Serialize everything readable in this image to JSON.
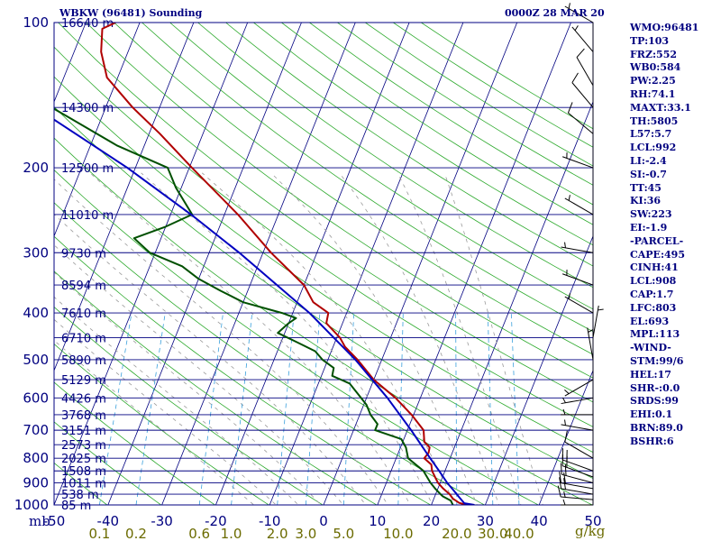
{
  "header": {
    "title": "WBKW (96481) Sounding",
    "datetime": "0000Z 28 MAR 20"
  },
  "indices": [
    "WMO:96481",
    "TP:103",
    "FRZ:552",
    "WB0:584",
    "PW:2.25",
    "RH:74.1",
    "MAXT:33.1",
    "TH:5805",
    "L57:5.7",
    "LCL:992",
    "LI:-2.4",
    "SI:-0.7",
    "TT:45",
    "KI:36",
    "SW:223",
    "EI:-1.9",
    "-PARCEL-",
    "CAPE:495",
    "CINH:41",
    "LCL:908",
    "CAP:1.7",
    "LFC:803",
    "EL:693",
    "MPL:113",
    "-WIND-",
    "STM:99/6",
    "HEL:17",
    "SHR-:0.0",
    "SRDS:99",
    "EHI:0.1",
    "BRN:89.0",
    "BSHR:6"
  ],
  "colors": {
    "frame": "#000080",
    "isobar": "#000080",
    "isotherm": "#000080",
    "dry_adiabat": "#2eaa2e",
    "moist_adiabat": "#9a9a9a",
    "mixing_ratio": "#3aa0dc",
    "temperature": "#b00000",
    "dewpoint": "#005000",
    "parcel": "#0000c0",
    "wind_barb": "#000000",
    "axis_text": "#000080",
    "mixing_text": "#6b6b00"
  },
  "chart_data": {
    "type": "line",
    "chart_kind": "skew-T log-P sounding",
    "y_scale": "log",
    "ylim": [
      1000,
      100
    ],
    "xlim": [
      -50,
      50
    ],
    "y_unit": "mb",
    "mixing_unit": "g/kg",
    "pressure_ticks": [
      100,
      200,
      300,
      400,
      500,
      600,
      700,
      800,
      900,
      1000
    ],
    "temperature_ticks": [
      -50,
      -40,
      -30,
      -20,
      -10,
      0,
      10,
      20,
      30,
      40,
      50
    ],
    "mixing_ratio_ticks": [
      "0.1",
      "0.2",
      "0.6",
      "1.0",
      "2.0",
      "3.0",
      "5.0",
      "10.0",
      "20.0",
      "30.0",
      "40.0"
    ],
    "mixing_ratio_values": [
      0.1,
      0.2,
      0.6,
      1.0,
      2.0,
      3.0,
      5.0,
      10.0,
      20.0,
      30.0,
      40.0
    ],
    "height_labels": [
      {
        "p": 100,
        "label": "16640 m"
      },
      {
        "p": 150,
        "label": "14300 m"
      },
      {
        "p": 200,
        "label": "12500 m"
      },
      {
        "p": 250,
        "label": "11010 m"
      },
      {
        "p": 300,
        "label": "9730 m"
      },
      {
        "p": 350,
        "label": "8594 m"
      },
      {
        "p": 400,
        "label": "7610 m"
      },
      {
        "p": 450,
        "label": "6710 m"
      },
      {
        "p": 500,
        "label": "5890 m"
      },
      {
        "p": 550,
        "label": "5129 m"
      },
      {
        "p": 600,
        "label": "4426 m"
      },
      {
        "p": 650,
        "label": "3768 m"
      },
      {
        "p": 700,
        "label": "3151 m"
      },
      {
        "p": 750,
        "label": "2573 m"
      },
      {
        "p": 800,
        "label": "2025 m"
      },
      {
        "p": 850,
        "label": "1508 m"
      },
      {
        "p": 900,
        "label": "1011 m"
      },
      {
        "p": 950,
        "label": "538 m"
      },
      {
        "p": 1000,
        "label": "85 m"
      }
    ],
    "series": [
      {
        "key": "temperature",
        "points": [
          [
            1000,
            26.6
          ],
          [
            990,
            25.0
          ],
          [
            970,
            23.5
          ],
          [
            950,
            22.6
          ],
          [
            925,
            21.0
          ],
          [
            900,
            19.6
          ],
          [
            875,
            18.6
          ],
          [
            850,
            17.6
          ],
          [
            825,
            17.0
          ],
          [
            800,
            15.2
          ],
          [
            780,
            15.6
          ],
          [
            760,
            15.4
          ],
          [
            740,
            14.0
          ],
          [
            700,
            13.0
          ],
          [
            650,
            9.6
          ],
          [
            600,
            5.4
          ],
          [
            550,
            0.0
          ],
          [
            500,
            -4.5
          ],
          [
            470,
            -7.8
          ],
          [
            450,
            -9.4
          ],
          [
            420,
            -13.0
          ],
          [
            400,
            -13.4
          ],
          [
            380,
            -17.0
          ],
          [
            350,
            -20.0
          ],
          [
            300,
            -28.5
          ],
          [
            250,
            -37.5
          ],
          [
            200,
            -49.5
          ],
          [
            170,
            -58.0
          ],
          [
            150,
            -65.0
          ],
          [
            130,
            -72.0
          ],
          [
            115,
            -75.0
          ],
          [
            103,
            -76.5
          ],
          [
            100,
            -74.5
          ]
        ]
      },
      {
        "key": "dewpoint",
        "points": [
          [
            1000,
            24.0
          ],
          [
            980,
            23.3
          ],
          [
            960,
            21.5
          ],
          [
            950,
            20.9
          ],
          [
            925,
            19.5
          ],
          [
            900,
            18.2
          ],
          [
            850,
            16.0
          ],
          [
            800,
            12.2
          ],
          [
            760,
            11.0
          ],
          [
            730,
            9.5
          ],
          [
            700,
            4.0
          ],
          [
            680,
            4.0
          ],
          [
            650,
            2.0
          ],
          [
            620,
            0.5
          ],
          [
            600,
            -1.0
          ],
          [
            560,
            -4.2
          ],
          [
            540,
            -8.0
          ],
          [
            520,
            -8.3
          ],
          [
            500,
            -11.0
          ],
          [
            480,
            -13.0
          ],
          [
            460,
            -17.0
          ],
          [
            440,
            -21.3
          ],
          [
            420,
            -20.0
          ],
          [
            410,
            -19.0
          ],
          [
            400,
            -22.0
          ],
          [
            380,
            -30.0
          ],
          [
            360,
            -35.0
          ],
          [
            340,
            -40.0
          ],
          [
            320,
            -44.0
          ],
          [
            300,
            -51.0
          ],
          [
            280,
            -55.0
          ],
          [
            265,
            -50.0
          ],
          [
            250,
            -46.0
          ],
          [
            220,
            -51.0
          ],
          [
            200,
            -54.0
          ],
          [
            180,
            -65.0
          ],
          [
            150,
            -80.0
          ],
          [
            130,
            -84.0
          ],
          [
            110,
            -88.0
          ],
          [
            100,
            -91.0
          ]
        ]
      },
      {
        "key": "parcel",
        "points": [
          [
            1000,
            28.0
          ],
          [
            992,
            26.0
          ],
          [
            960,
            24.4
          ],
          [
            930,
            22.9
          ],
          [
            900,
            21.3
          ],
          [
            850,
            18.9
          ],
          [
            800,
            16.3
          ],
          [
            700,
            10.7
          ],
          [
            600,
            3.9
          ],
          [
            500,
            -4.9
          ],
          [
            400,
            -16.9
          ],
          [
            300,
            -34.4
          ],
          [
            250,
            -46.2
          ],
          [
            200,
            -61.5
          ],
          [
            150,
            -83.0
          ],
          [
            120,
            -100.8
          ],
          [
            110,
            -107.9
          ]
        ]
      }
    ],
    "wind_barbs": [
      {
        "p": 1000,
        "dir": 270,
        "kt": 5
      },
      {
        "p": 975,
        "dir": 275,
        "kt": 15
      },
      {
        "p": 950,
        "dir": 280,
        "kt": 20
      },
      {
        "p": 925,
        "dir": 280,
        "kt": 20
      },
      {
        "p": 900,
        "dir": 285,
        "kt": 20
      },
      {
        "p": 875,
        "dir": 290,
        "kt": 20
      },
      {
        "p": 850,
        "dir": 290,
        "kt": 20
      },
      {
        "p": 800,
        "dir": 300,
        "kt": 10
      },
      {
        "p": 700,
        "dir": 280,
        "kt": 5
      },
      {
        "p": 650,
        "dir": 270,
        "kt": 5
      },
      {
        "p": 600,
        "dir": 260,
        "kt": 5
      },
      {
        "p": 550,
        "dir": 240,
        "kt": 5
      },
      {
        "p": 500,
        "dir": 350,
        "kt": 5
      },
      {
        "p": 450,
        "dir": 10,
        "kt": 5
      },
      {
        "p": 400,
        "dir": 300,
        "kt": 5
      },
      {
        "p": 350,
        "dir": 290,
        "kt": 5
      },
      {
        "p": 300,
        "dir": 280,
        "kt": 5
      },
      {
        "p": 250,
        "dir": 300,
        "kt": 5
      },
      {
        "p": 200,
        "dir": 290,
        "kt": 5
      },
      {
        "p": 170,
        "dir": 310,
        "kt": 10
      },
      {
        "p": 150,
        "dir": 320,
        "kt": 10
      },
      {
        "p": 135,
        "dir": 330,
        "kt": 10
      },
      {
        "p": 115,
        "dir": 320,
        "kt": 5
      },
      {
        "p": 100,
        "dir": 300,
        "kt": 5
      }
    ]
  }
}
